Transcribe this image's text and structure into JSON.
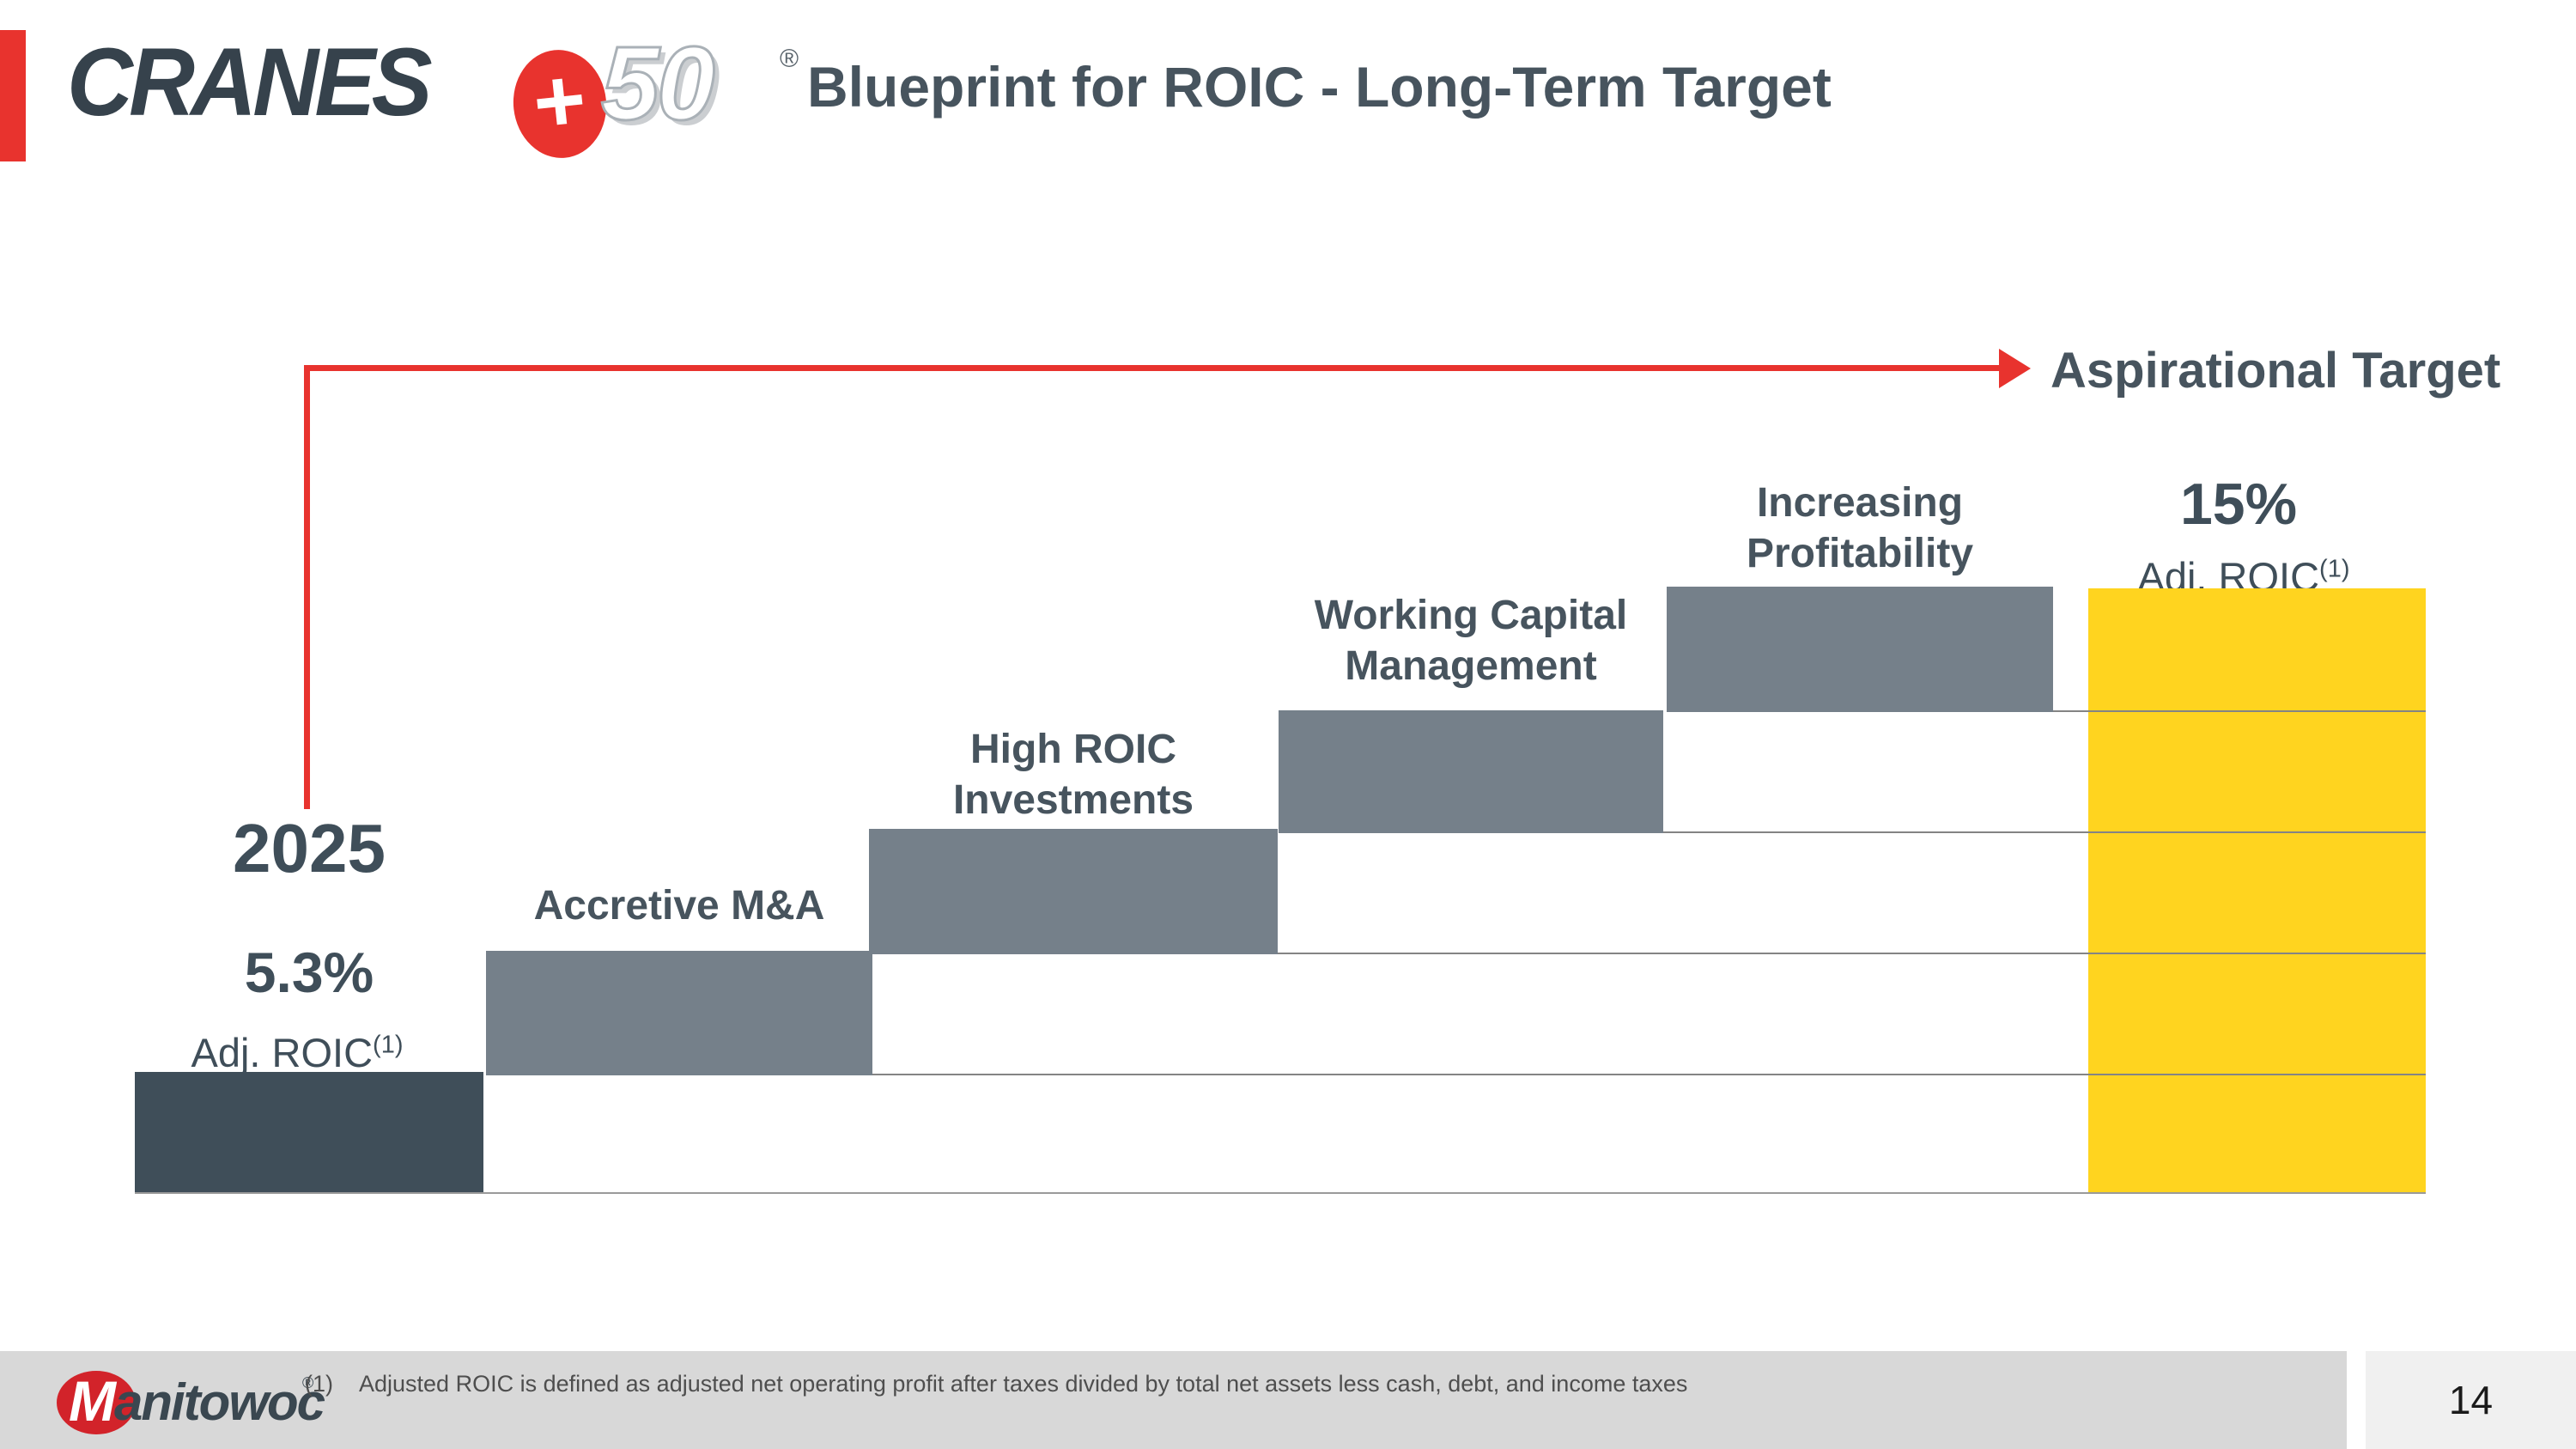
{
  "slide": {
    "logo": {
      "cranes": "CRANES",
      "plus": "+",
      "fifty": "50",
      "registered": "®"
    },
    "title": "Blueprint for ROIC - Long-Term Target",
    "aspirational_label": "Aspirational Target",
    "start": {
      "year": "2025",
      "value": "5.3%",
      "metric": "Adj. ROIC",
      "footnote_ref": "(1)"
    },
    "target": {
      "value": "15%",
      "metric": "Adj. ROIC",
      "footnote_ref": "(1)"
    },
    "steps": [
      {
        "label": "Accretive M&A"
      },
      {
        "label": "High ROIC Investments"
      },
      {
        "label": "Working Capital Management"
      },
      {
        "label": "Increasing Profitability"
      }
    ],
    "footer": {
      "brand_m": "M",
      "brand_rest": "anitowoc",
      "brand_registered": "®",
      "footnote_marker": "(1)",
      "footnote": "Adjusted ROIC is defined as adjusted net operating profit after taxes divided by total net assets less cash, debt, and income taxes",
      "page_number": "14"
    },
    "colors": {
      "accent_red": "#E8332E",
      "dark_slate_bar": "#3F4E59",
      "step_gray_bar": "#75808A",
      "target_yellow_bar": "#FFD41F",
      "title_text": "#47545E",
      "gridline": "#848484",
      "footer_band": "#D8D8D8",
      "page_panel": "#F0F0F0",
      "footnote_text": "#4E4E4E",
      "manitowoc_red": "#D2232A"
    }
  },
  "chart_data": {
    "type": "bar",
    "subtype": "waterfall-staircase",
    "title": "Blueprint for ROIC - Long-Term Target",
    "categories": [
      "2025",
      "Accretive M&A",
      "High ROIC Investments",
      "Working Capital Management",
      "Increasing Profitability",
      "Aspirational Target"
    ],
    "values": [
      5.3,
      null,
      null,
      null,
      null,
      15
    ],
    "value_labels": [
      "5.3% Adj. ROIC(1)",
      "",
      "",
      "",
      "",
      "15% Adj. ROIC(1)"
    ],
    "series": [
      {
        "name": "Starting Adj. ROIC 2025",
        "role": "start",
        "value": 5.3
      },
      {
        "name": "Accretive M&A",
        "role": "increment",
        "value": null
      },
      {
        "name": "High ROIC Investments",
        "role": "increment",
        "value": null
      },
      {
        "name": "Working Capital Management",
        "role": "increment",
        "value": null
      },
      {
        "name": "Increasing Profitability",
        "role": "increment",
        "value": null
      },
      {
        "name": "Aspirational Target Adj. ROIC",
        "role": "total",
        "value": 15
      }
    ],
    "annotations": [
      "Aspirational Target"
    ],
    "xlabel": "",
    "ylabel": "Adj. ROIC (%)",
    "ylim": [
      0,
      15
    ],
    "grid": "step-lines-only",
    "legend": "none",
    "bar_colors": [
      "#3F4E59",
      "#75808A",
      "#75808A",
      "#75808A",
      "#75808A",
      "#FFD41F"
    ]
  }
}
